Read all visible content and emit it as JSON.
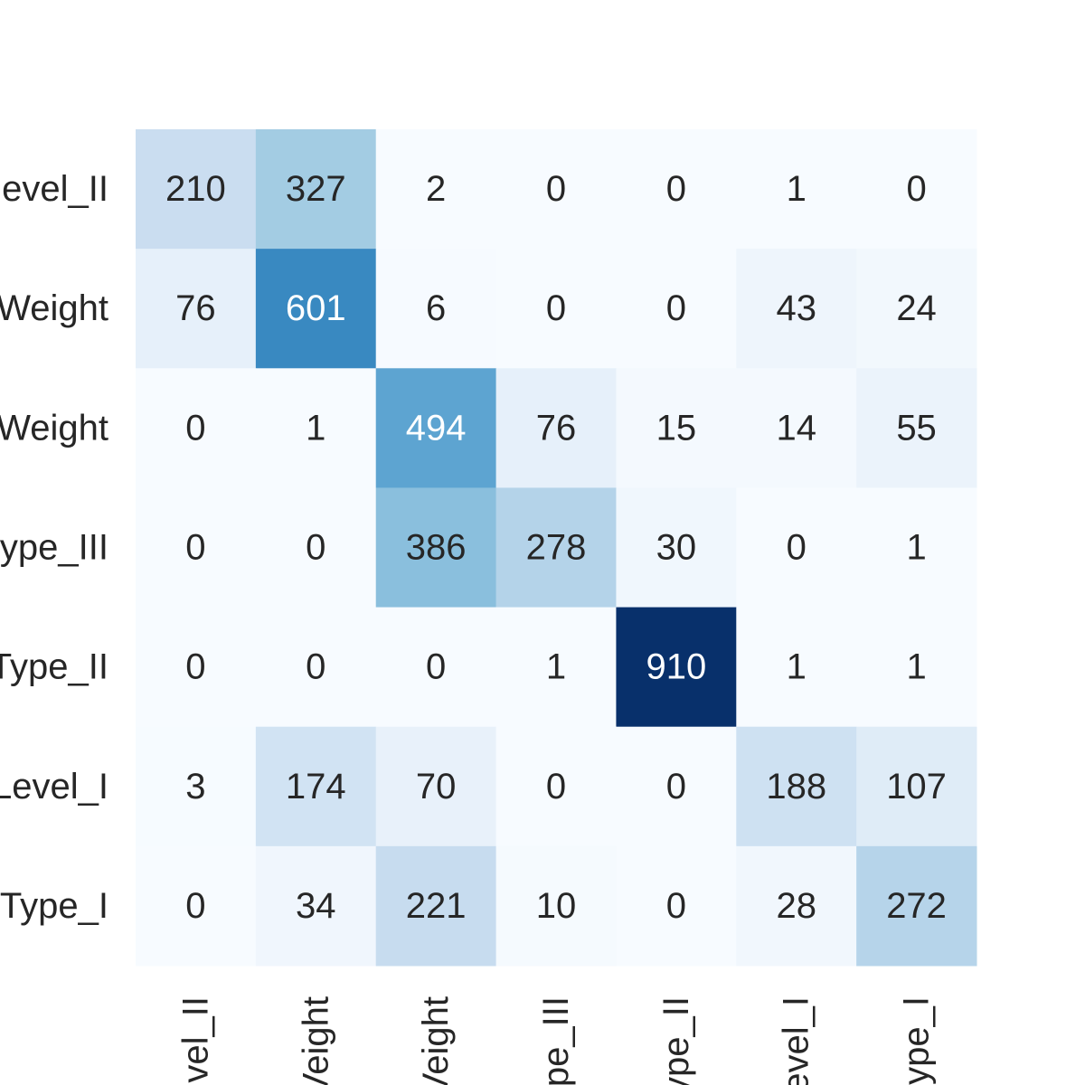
{
  "chart_data": {
    "type": "heatmap",
    "title": "",
    "xlabel": "",
    "ylabel": "",
    "row_labels": [
      "evel_II",
      "Weight",
      "Weight",
      "ype_III",
      "Type_II",
      "Level_I",
      "Type_I"
    ],
    "col_labels": [
      "vel_II",
      "Veight",
      "Veight",
      "pe_III",
      "ype_II",
      "evel_I",
      "ype_I"
    ],
    "values": [
      [
        210,
        327,
        2,
        0,
        0,
        1,
        0
      ],
      [
        76,
        601,
        6,
        0,
        0,
        43,
        24
      ],
      [
        0,
        1,
        494,
        76,
        15,
        14,
        55
      ],
      [
        0,
        0,
        386,
        278,
        30,
        0,
        1
      ],
      [
        0,
        0,
        0,
        1,
        910,
        1,
        1
      ],
      [
        3,
        174,
        70,
        0,
        0,
        188,
        107
      ],
      [
        0,
        34,
        221,
        10,
        0,
        28,
        272
      ]
    ],
    "value_range": [
      0,
      910
    ],
    "colormap": "Blues",
    "colorbar": false,
    "grid": false,
    "annotate": true
  }
}
